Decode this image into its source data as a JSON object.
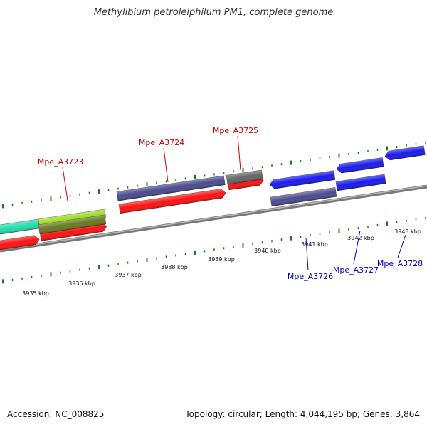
{
  "title": "Methylibium petroleiphilum PM1, complete genome",
  "footer": {
    "accession": "Accession: NC_008825",
    "summary": "Topology: circular; Length: 4,044,195 bp; Genes: 3,864"
  },
  "colors": {
    "forward_label": "#cc0000",
    "reverse_label": "#0000cc",
    "tick": "#1a7a1a",
    "backbone": "#8a8a8a",
    "red": "#ff1111",
    "blue": "#1a1aee",
    "slate": "#4a4a90",
    "grey": "#666666",
    "lime": "#99dd22",
    "olive": "#6a7a22",
    "mint": "#22ddaa"
  },
  "scale": {
    "labels": [
      "3935 kbp",
      "3936 kbp",
      "3937 kbp",
      "3938 kbp",
      "3939 kbp",
      "3940 kbp",
      "3941 kbp",
      "3942 kbp",
      "3943 kbp"
    ]
  },
  "gene_labels": {
    "forward": [
      "Mpe_A3723",
      "Mpe_A3724",
      "Mpe_A3725"
    ],
    "reverse": [
      "Mpe_A3726",
      "Mpe_A3727",
      "Mpe_A3728"
    ]
  }
}
